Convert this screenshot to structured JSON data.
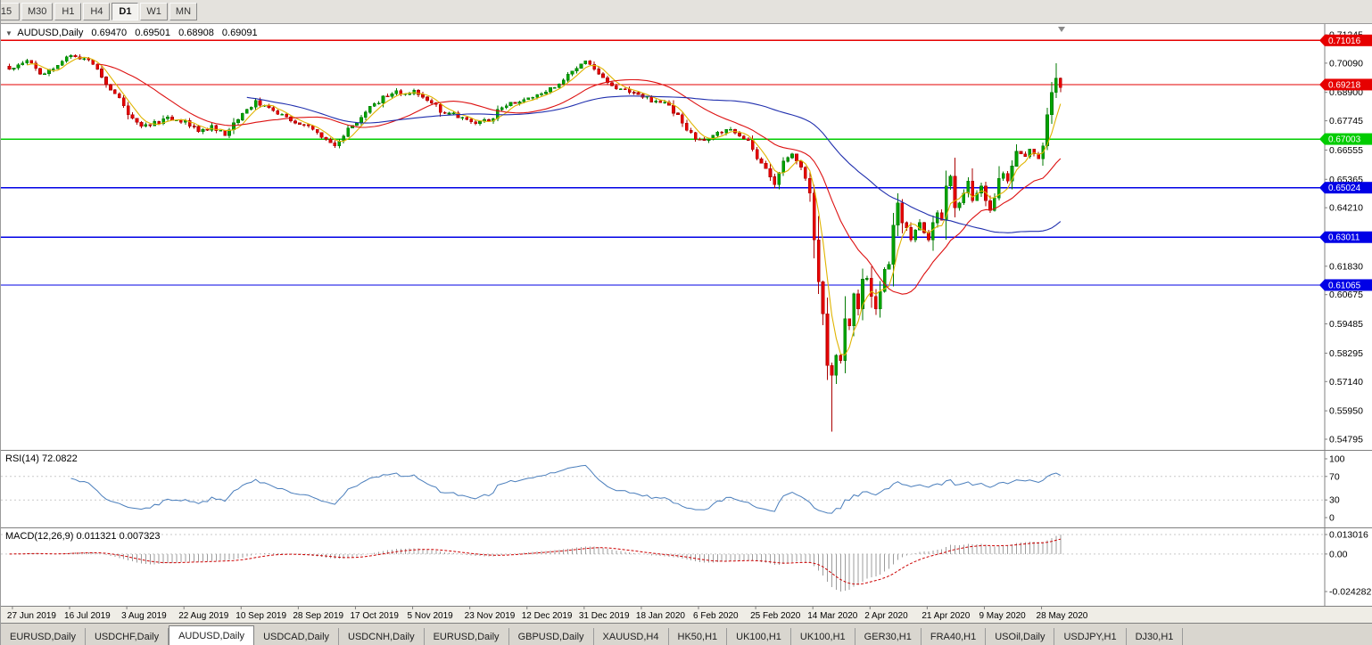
{
  "toolbar": {
    "timeframes": [
      {
        "label": "15",
        "active": false
      },
      {
        "label": "M30",
        "active": false
      },
      {
        "label": "H1",
        "active": false
      },
      {
        "label": "H4",
        "active": false
      },
      {
        "label": "D1",
        "active": true
      },
      {
        "label": "W1",
        "active": false
      },
      {
        "label": "MN",
        "active": false
      }
    ]
  },
  "chart_header": {
    "collapse_icon": "▼",
    "title": "AUDUSD,Daily",
    "open": "0.69470",
    "high": "0.69501",
    "low": "0.68908",
    "close": "0.69091"
  },
  "chart_data": {
    "type": "candlestick",
    "title": "AUDUSD,Daily",
    "ylim": [
      0.54795,
      0.71245
    ],
    "price_ticks": [
      "0.71245",
      "0.70090",
      "0.68900",
      "0.67745",
      "0.66555",
      "0.65365",
      "0.64210",
      "0.63020",
      "0.61830",
      "0.60675",
      "0.59485",
      "0.58295",
      "0.57140",
      "0.55950",
      "0.54795"
    ],
    "x_labels": [
      "27 Jun 2019",
      "16 Jul 2019",
      "3 Aug 2019",
      "22 Aug 2019",
      "10 Sep 2019",
      "28 Sep 2019",
      "17 Oct 2019",
      "5 Nov 2019",
      "23 Nov 2019",
      "12 Dec 2019",
      "31 Dec 2019",
      "18 Jan 2020",
      "6 Feb 2020",
      "25 Feb 2020",
      "14 Mar 2020",
      "2 Apr 2020",
      "21 Apr 2020",
      "9 May 2020",
      "28 May 2020"
    ],
    "bars_total": 240,
    "label_first_bar": 1,
    "label_bar_step": 13,
    "close_anchors": [
      [
        0,
        0.6985
      ],
      [
        1,
        0.699
      ],
      [
        4,
        0.702
      ],
      [
        7,
        0.6965
      ],
      [
        11,
        0.7
      ],
      [
        14,
        0.704
      ],
      [
        17,
        0.7028
      ],
      [
        20,
        0.6985
      ],
      [
        23,
        0.69
      ],
      [
        25,
        0.6868
      ],
      [
        27,
        0.68
      ],
      [
        29,
        0.6768
      ],
      [
        32,
        0.6755
      ],
      [
        36,
        0.679
      ],
      [
        40,
        0.6775
      ],
      [
        43,
        0.673
      ],
      [
        46,
        0.6755
      ],
      [
        49,
        0.6715
      ],
      [
        53,
        0.6805
      ],
      [
        56,
        0.6858
      ],
      [
        60,
        0.6815
      ],
      [
        63,
        0.679
      ],
      [
        66,
        0.676
      ],
      [
        69,
        0.674
      ],
      [
        72,
        0.67
      ],
      [
        74,
        0.6672
      ],
      [
        77,
        0.6745
      ],
      [
        79,
        0.6765
      ],
      [
        83,
        0.6845
      ],
      [
        87,
        0.6885
      ],
      [
        92,
        0.6898
      ],
      [
        95,
        0.6858
      ],
      [
        99,
        0.6805
      ],
      [
        103,
        0.6788
      ],
      [
        105,
        0.677
      ],
      [
        109,
        0.6772
      ],
      [
        112,
        0.6828
      ],
      [
        116,
        0.6852
      ],
      [
        118,
        0.6868
      ],
      [
        121,
        0.6885
      ],
      [
        125,
        0.6925
      ],
      [
        129,
        0.6988
      ],
      [
        131,
        0.7018
      ],
      [
        133,
        0.6985
      ],
      [
        136,
        0.693
      ],
      [
        139,
        0.6905
      ],
      [
        142,
        0.689
      ],
      [
        144,
        0.687
      ],
      [
        147,
        0.6855
      ],
      [
        150,
        0.6838
      ],
      [
        153,
        0.6765
      ],
      [
        156,
        0.67
      ],
      [
        158,
        0.6695
      ],
      [
        161,
        0.6728
      ],
      [
        164,
        0.674
      ],
      [
        166,
        0.6712
      ],
      [
        168,
        0.6695
      ],
      [
        170,
        0.662
      ],
      [
        172,
        0.658
      ],
      [
        174,
        0.6515
      ],
      [
        176,
        0.661
      ],
      [
        178,
        0.664
      ],
      [
        180,
        0.6585
      ],
      [
        181,
        0.654
      ],
      [
        182,
        0.648
      ],
      [
        183,
        0.629
      ],
      [
        184,
        0.612
      ],
      [
        185,
        0.599
      ],
      [
        186,
        0.578
      ],
      [
        187,
        0.574
      ],
      [
        188,
        0.582
      ],
      [
        189,
        0.58
      ],
      [
        190,
        0.597
      ],
      [
        191,
        0.594
      ],
      [
        192,
        0.607
      ],
      [
        193,
        0.601
      ],
      [
        194,
        0.613
      ],
      [
        195,
        0.6135
      ],
      [
        196,
        0.606
      ],
      [
        197,
        0.601
      ],
      [
        198,
        0.608
      ],
      [
        199,
        0.617
      ],
      [
        200,
        0.619
      ],
      [
        201,
        0.635
      ],
      [
        202,
        0.644
      ],
      [
        203,
        0.636
      ],
      [
        204,
        0.634
      ],
      [
        205,
        0.629
      ],
      [
        206,
        0.633
      ],
      [
        207,
        0.636
      ],
      [
        208,
        0.632
      ],
      [
        209,
        0.629
      ],
      [
        210,
        0.636
      ],
      [
        211,
        0.64
      ],
      [
        212,
        0.637
      ],
      [
        213,
        0.651
      ],
      [
        214,
        0.655
      ],
      [
        215,
        0.642
      ],
      [
        216,
        0.644
      ],
      [
        217,
        0.648
      ],
      [
        218,
        0.653
      ],
      [
        219,
        0.645
      ],
      [
        220,
        0.648
      ],
      [
        221,
        0.651
      ],
      [
        222,
        0.645
      ],
      [
        223,
        0.641
      ],
      [
        224,
        0.646
      ],
      [
        225,
        0.654
      ],
      [
        226,
        0.656
      ],
      [
        227,
        0.653
      ],
      [
        228,
        0.659
      ],
      [
        229,
        0.665
      ],
      [
        230,
        0.664
      ],
      [
        231,
        0.663
      ],
      [
        232,
        0.666
      ],
      [
        233,
        0.664
      ],
      [
        234,
        0.662
      ],
      [
        235,
        0.6672
      ],
      [
        236,
        0.68
      ],
      [
        237,
        0.689
      ],
      [
        238,
        0.6947
      ],
      [
        239,
        0.69091
      ]
    ],
    "special_bars": {
      "187": {
        "l": 0.551
      },
      "238": {
        "h": 0.7008
      },
      "239": {
        "o": 0.6947,
        "h": 0.69501,
        "l": 0.68908,
        "c": 0.69091
      }
    },
    "hlines": [
      {
        "price": 0.71016,
        "label": "0.71016",
        "color": "#e60000"
      },
      {
        "price": 0.69218,
        "label": "0.69218",
        "color": "#e60000"
      },
      {
        "price": 0.67003,
        "label": "0.67003",
        "color": "#00cc00"
      },
      {
        "price": 0.65024,
        "label": "0.65024",
        "color": "#0000e6"
      },
      {
        "price": 0.63011,
        "label": "0.63011",
        "color": "#0000e6"
      },
      {
        "price": 0.61065,
        "label": "0.61065",
        "color": "#0000e6"
      }
    ],
    "moving_averages": [
      {
        "period": 5,
        "color": "#e0b400"
      },
      {
        "period": 21,
        "color": "#dd1111"
      },
      {
        "period": 55,
        "color": "#202fae"
      }
    ],
    "colors": {
      "up_fill": "#00a300",
      "up_stroke": "#007a00",
      "down_fill": "#e60000",
      "down_stroke": "#aa0000"
    },
    "rsi": {
      "label": "RSI(14) 72.0822",
      "period": 14,
      "axis_ticks": [
        "100",
        "70",
        "30",
        "0"
      ],
      "levels": [
        70,
        30
      ],
      "color": "#4a7ebc"
    },
    "macd": {
      "label": "MACD(12,26,9) 0.011321 0.007323",
      "fast": 12,
      "slow": 26,
      "signal": 9,
      "axis_ticks": [
        "0.013016",
        "0.00",
        "-0.024282"
      ],
      "hist_color": "#9c9c9c",
      "signal_color": "#cc0000"
    }
  },
  "bottom_tabs": {
    "items": [
      "EURUSD,Daily",
      "USDCHF,Daily",
      "AUDUSD,Daily",
      "USDCAD,Daily",
      "USDCNH,Daily",
      "EURUSD,Daily",
      "GBPUSD,Daily",
      "XAUUSD,H4",
      "HK50,H1",
      "UK100,H1",
      "UK100,H1",
      "GER30,H1",
      "FRA40,H1",
      "USOil,Daily",
      "USDJPY,H1",
      "DJ30,H1"
    ],
    "active_index": 2
  }
}
